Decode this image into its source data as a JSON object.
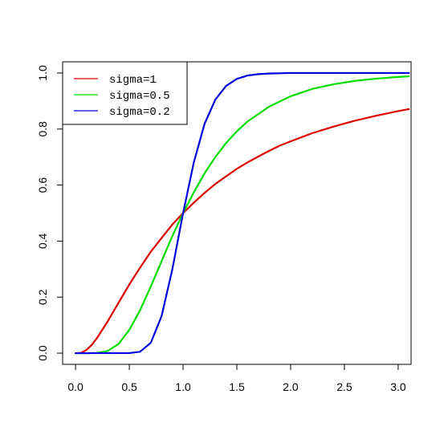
{
  "chart_data": {
    "type": "line",
    "title": "",
    "xlabel": "",
    "ylabel": "",
    "xlim": [
      -0.12,
      3.12
    ],
    "ylim": [
      -0.04,
      1.04
    ],
    "x_ticks": [
      "0.0",
      "0.5",
      "1.0",
      "1.5",
      "2.0",
      "2.5",
      "3.0"
    ],
    "y_ticks": [
      "0.0",
      "0.2",
      "0.4",
      "0.6",
      "0.8",
      "1.0"
    ],
    "grid": false,
    "legend_position": "top-left",
    "series": [
      {
        "name": "sigma=1",
        "color": "#dd0000",
        "x": [
          0,
          0.05,
          0.1,
          0.15,
          0.2,
          0.3,
          0.4,
          0.5,
          0.6,
          0.7,
          0.8,
          0.9,
          1.0,
          1.1,
          1.2,
          1.3,
          1.4,
          1.5,
          1.6,
          1.7,
          1.8,
          1.9,
          2.0,
          2.2,
          2.4,
          2.6,
          2.8,
          3.0,
          3.1
        ],
        "y": [
          0,
          0.001,
          0.011,
          0.029,
          0.054,
          0.114,
          0.18,
          0.245,
          0.305,
          0.362,
          0.411,
          0.459,
          0.5,
          0.537,
          0.572,
          0.604,
          0.631,
          0.658,
          0.681,
          0.702,
          0.722,
          0.741,
          0.756,
          0.785,
          0.809,
          0.83,
          0.848,
          0.864,
          0.871
        ]
      },
      {
        "name": "sigma=0.5",
        "color": "#00dd00",
        "x": [
          0,
          0.1,
          0.2,
          0.3,
          0.4,
          0.5,
          0.6,
          0.7,
          0.8,
          0.9,
          1.0,
          1.1,
          1.2,
          1.3,
          1.4,
          1.5,
          1.6,
          1.8,
          2.0,
          2.2,
          2.4,
          2.6,
          2.8,
          3.0,
          3.1
        ],
        "y": [
          0,
          0,
          0.0007,
          0.008,
          0.033,
          0.083,
          0.153,
          0.238,
          0.328,
          0.418,
          0.5,
          0.574,
          0.642,
          0.7,
          0.75,
          0.792,
          0.827,
          0.88,
          0.917,
          0.943,
          0.96,
          0.972,
          0.98,
          0.986,
          0.988
        ]
      },
      {
        "name": "sigma=0.2",
        "color": "#0000dd",
        "x": [
          0,
          0.5,
          0.6,
          0.7,
          0.8,
          0.9,
          1.0,
          1.1,
          1.2,
          1.3,
          1.4,
          1.5,
          1.6,
          1.7,
          1.8,
          2.0,
          2.5,
          3.0,
          3.1
        ],
        "y": [
          0,
          0.0003,
          0.005,
          0.037,
          0.132,
          0.299,
          0.5,
          0.681,
          0.819,
          0.905,
          0.954,
          0.979,
          0.991,
          0.996,
          0.998,
          1.0,
          1.0,
          1.0,
          1.0
        ]
      }
    ]
  }
}
